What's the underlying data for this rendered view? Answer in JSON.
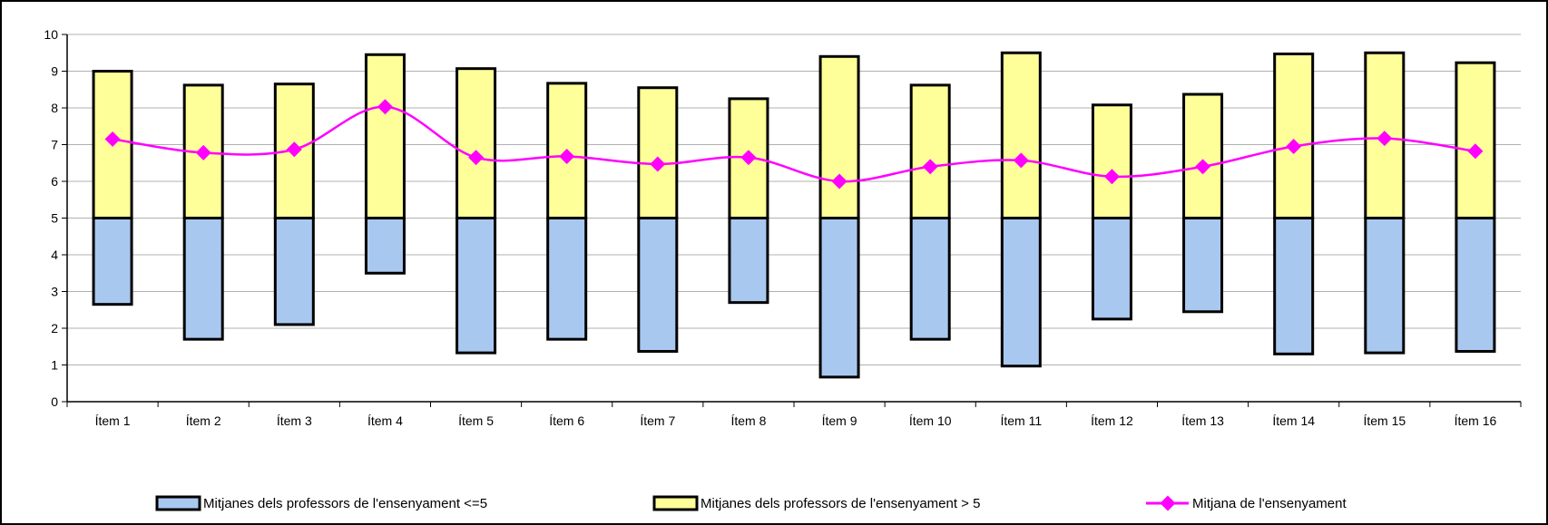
{
  "chart_data": {
    "type": "floating-bar-line",
    "categories": [
      "Ítem 1",
      "Ítem 2",
      "Ítem 3",
      "Ítem 4",
      "Ítem 5",
      "Ítem 6",
      "Ítem 7",
      "Ítem 8",
      "Ítem 9",
      "Ítem 10",
      "Ítem 11",
      "Ítem 12",
      "Ítem 13",
      "Ítem 14",
      "Ítem 15",
      "Ítem 16"
    ],
    "ylim": [
      0,
      10
    ],
    "yticks": [
      0,
      1,
      2,
      3,
      4,
      5,
      6,
      7,
      8,
      9,
      10
    ],
    "grid": true,
    "legend_placement": "bottom",
    "series": [
      {
        "name": "Mitjanes dels professors de l'ensenyament <=5",
        "kind": "range",
        "color": "#a9c8f0",
        "low": [
          2.65,
          1.7,
          2.1,
          3.5,
          1.33,
          1.7,
          1.37,
          2.7,
          0.67,
          1.7,
          0.97,
          2.25,
          2.45,
          1.3,
          1.33,
          1.37
        ],
        "high": [
          5,
          5,
          5,
          5,
          5,
          5,
          5,
          5,
          5,
          5,
          5,
          5,
          5,
          5,
          5,
          5
        ]
      },
      {
        "name": "Mitjanes dels professors de l'ensenyament > 5",
        "kind": "range",
        "color": "#ffff99",
        "low": [
          5,
          5,
          5,
          5,
          5,
          5,
          5,
          5,
          5,
          5,
          5,
          5,
          5,
          5,
          5,
          5
        ],
        "high": [
          9.0,
          8.62,
          8.65,
          9.45,
          9.07,
          8.67,
          8.55,
          8.25,
          9.4,
          8.62,
          9.5,
          8.08,
          8.37,
          9.47,
          9.5,
          9.23
        ]
      },
      {
        "name": "Mitjana de l'ensenyament",
        "kind": "line",
        "color": "#ff00ff",
        "values": [
          7.15,
          6.78,
          6.87,
          8.03,
          6.65,
          6.68,
          6.47,
          6.65,
          6.0,
          6.4,
          6.57,
          6.13,
          6.4,
          6.95,
          7.17,
          6.82
        ]
      }
    ]
  }
}
